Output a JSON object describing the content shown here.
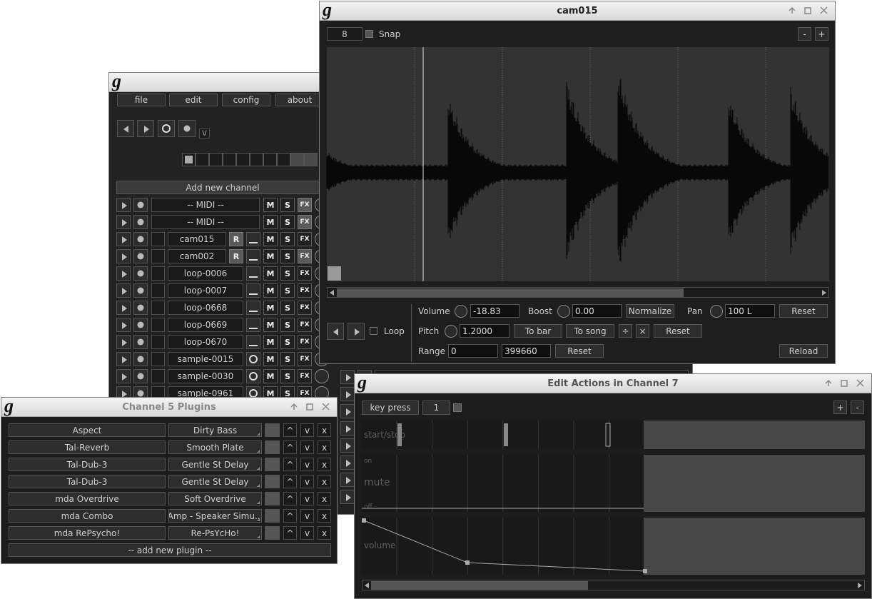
{
  "app_icon": "g",
  "main_window": {
    "menu": [
      "file",
      "edit",
      "config",
      "about"
    ],
    "metronome_label": "\\/",
    "add_channel": "Add new channel",
    "channels": [
      {
        "name": "-- MIDI --"
      },
      {
        "name": "-- MIDI --"
      },
      {
        "name": "cam015"
      },
      {
        "name": "cam002"
      },
      {
        "name": "loop-0006"
      },
      {
        "name": "loop-0007"
      },
      {
        "name": "loop-0668"
      },
      {
        "name": "loop-0669"
      },
      {
        "name": "loop-0670"
      },
      {
        "name": "sample-0015"
      },
      {
        "name": "sample-0030"
      },
      {
        "name": "sample-0961"
      }
    ],
    "mute": "M",
    "solo": "S",
    "fx": "FX",
    "read_actions": "R"
  },
  "sample_editor": {
    "title": "cam015",
    "grid": "8",
    "snap": "Snap",
    "zoom_out": "-",
    "zoom_in": "+",
    "loop": "Loop",
    "volume": {
      "label": "Volume",
      "value": "-18.83"
    },
    "boost": {
      "label": "Boost",
      "value": "0.00"
    },
    "normalize": "Normalize",
    "pan": {
      "label": "Pan",
      "value": "100 L"
    },
    "reset": "Reset",
    "pitch": {
      "label": "Pitch",
      "value": "1.2000"
    },
    "to_bar": "To bar",
    "to_song": "To song",
    "halve": "÷",
    "double": "×",
    "range": {
      "label": "Range",
      "start": "0",
      "end": "399660"
    },
    "reload": "Reload"
  },
  "plugins_window": {
    "title": "Channel 5 Plugins",
    "plugins": [
      {
        "name": "Aspect",
        "preset": "Dirty Bass"
      },
      {
        "name": "Tal-Reverb",
        "preset": "Smooth Plate"
      },
      {
        "name": "Tal-Dub-3",
        "preset": "Gentle St Delay"
      },
      {
        "name": "Tal-Dub-3",
        "preset": "Gentle St Delay"
      },
      {
        "name": "mda Overdrive",
        "preset": "Soft Overdrive"
      },
      {
        "name": "mda Combo",
        "preset": "Amp - Speaker Simu..."
      },
      {
        "name": "mda RePsycho!",
        "preset": "Re-PsYcHo!"
      }
    ],
    "move_up": "^",
    "move_down": "v",
    "remove": "x",
    "add_plugin": "-- add new plugin --"
  },
  "action_editor": {
    "title": "Edit Actions in Channel 7",
    "action_type": "key press",
    "grid": "1",
    "zoom_in": "+",
    "zoom_out": "-",
    "tracks": {
      "start_stop": "start/stop",
      "mute_on": "on",
      "mute": "mute",
      "mute_off": "off",
      "volume": "volume"
    }
  }
}
